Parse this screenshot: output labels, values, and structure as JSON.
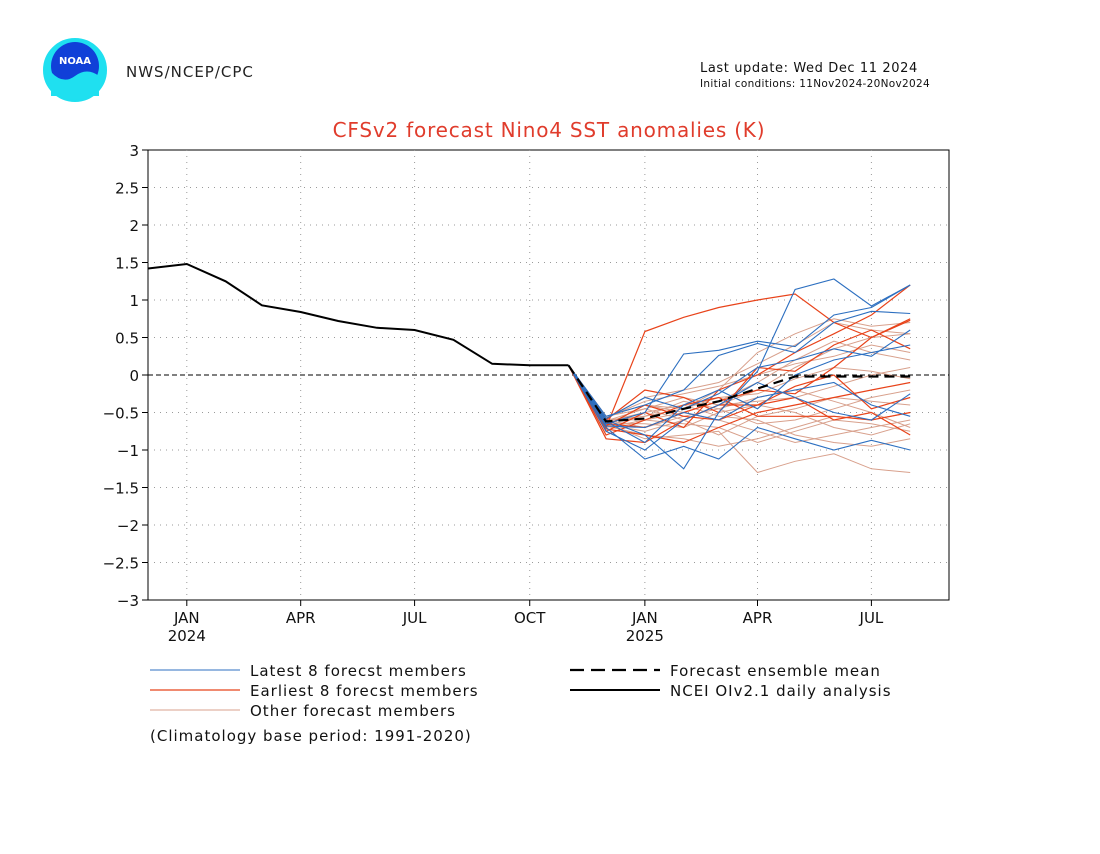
{
  "header": {
    "org": "NWS/NCEP/CPC",
    "logo_text": "NOAA",
    "last_update": "Last update: Wed Dec 11 2024",
    "initial_conditions": "Initial conditions: 11Nov2024-20Nov2024"
  },
  "footnote": "(Climatology base period: 1991-2020)",
  "colors": {
    "latest": "#2c6fc0",
    "earliest": "#e8431a",
    "other": "#d8a08c",
    "title": "#e03c2c"
  },
  "chart_data": {
    "type": "line",
    "title": "CFSv2 forecast Nino4 SST anomalies (K)",
    "ylim": [
      -3,
      3
    ],
    "y_ticks": [
      3,
      2.5,
      2,
      1.5,
      1,
      0.5,
      0,
      -0.5,
      -1,
      -1.5,
      -2,
      -2.5,
      -3
    ],
    "y_tick_labels": [
      "3",
      "2.5",
      "2",
      "1.5",
      "1",
      "0.5",
      "0",
      "−0.5",
      "−1",
      "−1.5",
      "−2",
      "−2.5",
      "−3"
    ],
    "x_range": [
      "2023-12-15",
      "2025-09-15"
    ],
    "x_ticks": [
      {
        "date": "2024-01-15",
        "label": "JAN",
        "year": "2024"
      },
      {
        "date": "2024-04-15",
        "label": "APR",
        "year": ""
      },
      {
        "date": "2024-07-15",
        "label": "JUL",
        "year": ""
      },
      {
        "date": "2024-10-15",
        "label": "OCT",
        "year": ""
      },
      {
        "date": "2025-01-15",
        "label": "JAN",
        "year": "2025"
      },
      {
        "date": "2025-04-15",
        "label": "APR",
        "year": ""
      },
      {
        "date": "2025-07-15",
        "label": "JUL",
        "year": ""
      }
    ],
    "grid": true,
    "zero_line": true,
    "legend": {
      "placement": "bottom",
      "entries": [
        {
          "key": "latest",
          "label": "Latest 8 forecst members"
        },
        {
          "key": "earliest",
          "label": "Earliest 8 forecst members"
        },
        {
          "key": "other",
          "label": "Other forecast members"
        },
        {
          "key": "mean",
          "label": "Forecast ensemble mean"
        },
        {
          "key": "obs",
          "label": "NCEI OIv2.1 daily analysis"
        }
      ]
    },
    "observed": {
      "name": "NCEI OIv2.1 daily analysis",
      "x": [
        "2023-12-15",
        "2024-01-15",
        "2024-02-15",
        "2024-03-15",
        "2024-04-15",
        "2024-05-15",
        "2024-06-15",
        "2024-07-15",
        "2024-08-15",
        "2024-09-15",
        "2024-10-15",
        "2024-11-15"
      ],
      "values": [
        1.42,
        1.48,
        1.25,
        0.93,
        0.84,
        0.72,
        0.63,
        0.6,
        0.47,
        0.15,
        0.13,
        0.13
      ]
    },
    "forecast_x": [
      "2024-11-15",
      "2024-12-15",
      "2025-01-15",
      "2025-02-15",
      "2025-03-15",
      "2025-04-15",
      "2025-05-15",
      "2025-06-15",
      "2025-07-15",
      "2025-08-15"
    ],
    "ensemble_mean": {
      "name": "Forecast ensemble mean",
      "values": [
        0.13,
        -0.62,
        -0.58,
        -0.45,
        -0.35,
        -0.18,
        -0.02,
        -0.02,
        -0.02,
        -0.02
      ]
    },
    "latest_members": [
      [
        0.13,
        -0.7,
        -1.12,
        -0.95,
        -1.12,
        -0.7,
        -0.85,
        -1.0,
        -0.87,
        -1.0
      ],
      [
        0.13,
        -0.65,
        -0.5,
        0.28,
        0.33,
        0.45,
        0.38,
        0.8,
        0.9,
        1.2
      ],
      [
        0.13,
        -0.6,
        -0.8,
        -1.25,
        -0.5,
        0.05,
        1.14,
        1.28,
        0.92,
        1.2
      ],
      [
        0.13,
        -0.55,
        -0.4,
        -0.2,
        0.26,
        0.42,
        0.3,
        0.7,
        0.85,
        0.82
      ],
      [
        0.13,
        -0.75,
        -1.0,
        -0.6,
        -0.4,
        -0.1,
        -0.3,
        -0.5,
        -0.6,
        -0.25
      ],
      [
        0.13,
        -0.58,
        -0.3,
        -0.45,
        -0.25,
        0.1,
        0.2,
        0.35,
        0.25,
        0.6
      ],
      [
        0.13,
        -0.68,
        -0.7,
        -0.5,
        -0.6,
        -0.3,
        -0.2,
        -0.1,
        -0.4,
        -0.55
      ],
      [
        0.13,
        -0.62,
        -0.9,
        -0.4,
        -0.2,
        -0.45,
        0.0,
        0.2,
        0.3,
        0.4
      ]
    ],
    "earliest_members": [
      [
        0.13,
        -0.7,
        0.58,
        0.77,
        0.9,
        1.0,
        1.08,
        0.7,
        0.5,
        0.75
      ],
      [
        0.13,
        -0.8,
        -0.6,
        -0.4,
        -0.3,
        -0.55,
        -0.55,
        -0.55,
        -0.6,
        -0.5
      ],
      [
        0.13,
        -0.85,
        -0.9,
        -0.6,
        -0.4,
        -0.4,
        -0.3,
        -0.6,
        -0.5,
        -0.8
      ],
      [
        0.13,
        -0.6,
        -0.2,
        -0.3,
        -0.5,
        0.1,
        0.05,
        0.4,
        0.6,
        0.35
      ],
      [
        0.13,
        -0.75,
        -0.5,
        -0.7,
        -0.2,
        0.0,
        0.3,
        0.55,
        0.8,
        1.2
      ],
      [
        0.13,
        -0.65,
        -0.7,
        -0.5,
        -0.35,
        -0.2,
        -0.25,
        0.1,
        0.5,
        0.73
      ],
      [
        0.13,
        -0.72,
        -0.8,
        -0.9,
        -0.7,
        -0.5,
        -0.4,
        -0.3,
        -0.2,
        -0.1
      ],
      [
        0.13,
        -0.68,
        -0.4,
        -0.55,
        -0.6,
        -0.4,
        -0.15,
        0.0,
        -0.45,
        -0.3
      ]
    ],
    "other_members": [
      [
        0.13,
        -0.55,
        -0.45,
        -0.3,
        -0.4,
        -0.2,
        0.1,
        0.35,
        0.5,
        0.55
      ],
      [
        0.13,
        -0.6,
        -0.7,
        -0.55,
        -0.45,
        -0.3,
        -0.2,
        -0.35,
        -0.5,
        -0.7
      ],
      [
        0.13,
        -0.65,
        -0.85,
        -0.8,
        -0.75,
        -1.3,
        -1.15,
        -1.05,
        -1.25,
        -1.3
      ],
      [
        0.13,
        -0.62,
        -0.5,
        -0.4,
        -0.55,
        -0.6,
        -0.8,
        -0.9,
        -0.95,
        -0.85
      ],
      [
        0.13,
        -0.58,
        -0.3,
        -0.2,
        -0.1,
        0.15,
        0.4,
        0.7,
        0.6,
        0.55
      ],
      [
        0.13,
        -0.7,
        -0.6,
        -0.65,
        -0.7,
        -0.9,
        -0.75,
        -0.6,
        -0.65,
        -0.75
      ],
      [
        0.13,
        -0.55,
        -0.4,
        -0.5,
        -0.35,
        -0.1,
        0.2,
        0.45,
        0.3,
        0.2
      ],
      [
        0.13,
        -0.66,
        -0.75,
        -0.6,
        -0.8,
        -0.55,
        -0.45,
        -0.3,
        -0.35,
        -0.4
      ],
      [
        0.13,
        -0.6,
        -0.55,
        -0.45,
        -0.3,
        -0.25,
        -0.05,
        0.1,
        0.05,
        -0.05
      ],
      [
        0.13,
        -0.64,
        -0.65,
        -0.7,
        -0.5,
        -0.4,
        -0.5,
        -0.7,
        -0.8,
        -0.65
      ],
      [
        0.13,
        -0.57,
        -0.35,
        -0.25,
        -0.15,
        0.0,
        0.15,
        0.25,
        0.4,
        0.3
      ],
      [
        0.13,
        -0.68,
        -0.8,
        -0.85,
        -0.95,
        -0.85,
        -0.7,
        -0.55,
        -0.6,
        -0.5
      ],
      [
        0.13,
        -0.61,
        -0.45,
        -0.6,
        -0.4,
        -0.35,
        -0.3,
        -0.15,
        0.0,
        0.1
      ],
      [
        0.13,
        -0.63,
        -0.55,
        -0.35,
        -0.45,
        -0.65,
        -0.6,
        -0.45,
        -0.3,
        -0.2
      ],
      [
        0.13,
        -0.59,
        -0.6,
        -0.5,
        -0.6,
        -0.75,
        -0.9,
        -0.8,
        -0.7,
        -0.6
      ],
      [
        0.13,
        -0.67,
        -0.4,
        -0.45,
        -0.2,
        0.3,
        0.55,
        0.75,
        0.65,
        0.7
      ]
    ]
  }
}
